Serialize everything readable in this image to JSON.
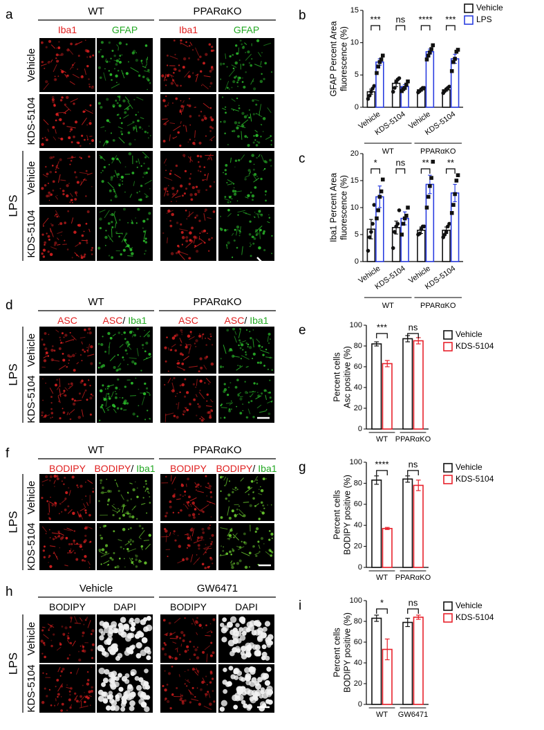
{
  "panels": [
    {
      "label": "a",
      "headers": [
        "WT",
        "PPARαKO"
      ],
      "columns": [
        [
          {
            "text": "Iba1",
            "color": "#e01e1e"
          }
        ],
        [
          {
            "text": "GFAP",
            "color": "#22a822"
          }
        ],
        [
          {
            "text": "Iba1",
            "color": "#e01e1e"
          }
        ],
        [
          {
            "text": "GFAP",
            "color": "#22a822"
          }
        ]
      ],
      "stains": [
        "#d82020",
        "#2cc02c",
        "#d82020",
        "#2cc02c"
      ],
      "rows": [
        "Vehicle",
        "KDS-5104",
        "Vehicle",
        "KDS-5104"
      ],
      "group": "LPS"
    },
    {
      "label": "d",
      "headers": [
        "WT",
        "PPARαKO"
      ],
      "columns": [
        [
          {
            "text": "ASC",
            "color": "#e01e1e"
          }
        ],
        [
          {
            "text": "ASC",
            "color": "#e01e1e"
          },
          {
            "text": "/",
            "color": "#000000"
          },
          {
            "text": "Iba1",
            "color": "#22a822"
          }
        ],
        [
          {
            "text": "ASC",
            "color": "#e01e1e"
          }
        ],
        [
          {
            "text": "ASC",
            "color": "#e01e1e"
          },
          {
            "text": "/",
            "color": "#000000"
          },
          {
            "text": "Iba1",
            "color": "#22a822"
          }
        ]
      ],
      "stains": [
        "#d82020",
        "#2cc02c",
        "#d82020",
        "#2cc02c"
      ],
      "rows": [
        "Vehicle",
        "KDS-5104"
      ],
      "group": "LPS"
    },
    {
      "label": "f",
      "headers": [
        "WT",
        "PPARαKO"
      ],
      "columns": [
        [
          {
            "text": "BODIPY",
            "color": "#e01e1e"
          }
        ],
        [
          {
            "text": "BODIPY",
            "color": "#e01e1e"
          },
          {
            "text": "/",
            "color": "#000000"
          },
          {
            "text": "Iba1",
            "color": "#22a822"
          }
        ],
        [
          {
            "text": "BODIPY",
            "color": "#e01e1e"
          }
        ],
        [
          {
            "text": "BODIPY",
            "color": "#e01e1e"
          },
          {
            "text": "/",
            "color": "#000000"
          },
          {
            "text": "Iba1",
            "color": "#22a822"
          }
        ]
      ],
      "stains": [
        "#d82020",
        "#6cd030",
        "#d82020",
        "#6cd030"
      ],
      "rows": [
        "Vehicle",
        "KDS-5104"
      ],
      "group": "LPS"
    },
    {
      "label": "h",
      "headers": [
        "Vehicle",
        "GW6471"
      ],
      "columns": [
        [
          {
            "text": "BODIPY",
            "color": "#000000"
          }
        ],
        [
          {
            "text": "DAPI",
            "color": "#000000"
          }
        ],
        [
          {
            "text": "BODIPY",
            "color": "#000000"
          }
        ],
        [
          {
            "text": "DAPI",
            "color": "#000000"
          }
        ]
      ],
      "stains": [
        "#c81c1c",
        "#ffffff",
        "#c81c1c",
        "#ffffff"
      ],
      "rows": [
        "Vehicle",
        "KDS-5104"
      ],
      "group": "LPS"
    }
  ],
  "chart_data": [
    {
      "type": "bar",
      "label": "b",
      "ylabel": [
        "GFAP Percent Area",
        "fluorescence (%)"
      ],
      "categories": [
        "Vehicle",
        "KDS-5104",
        "Vehicle",
        "KDS-5104"
      ],
      "groups": [
        "WT",
        "PPARαKO"
      ],
      "ylim": [
        0,
        15
      ],
      "yticks": [
        0,
        5,
        10,
        15
      ],
      "legend": "outside right",
      "series": [
        {
          "name": "Vehicle",
          "color": "#111111",
          "values": [
            2.4,
            3.7,
            2.7,
            2.7
          ],
          "errors": [
            0.4,
            0.5,
            0.2,
            0.2
          ],
          "points": [
            [
              1.3,
              1.8,
              2.4,
              2.9,
              3.3
            ],
            [
              2.4,
              3.0,
              3.9,
              4.3,
              4.5
            ],
            [
              2.3,
              2.5,
              2.8,
              3.0,
              3.0
            ],
            [
              2.2,
              2.5,
              2.8,
              3.0,
              3.2
            ]
          ]
        },
        {
          "name": "LPS",
          "color": "#2a3de0",
          "values": [
            7.0,
            3.2,
            8.6,
            7.5
          ],
          "errors": [
            0.5,
            0.3,
            0.4,
            0.7
          ],
          "points": [
            [
              5.3,
              6.3,
              7.0,
              7.4,
              8.0
            ],
            [
              2.5,
              2.8,
              3.0,
              3.5,
              4.0
            ],
            [
              7.4,
              8.0,
              8.5,
              9.0,
              9.6
            ],
            [
              5.6,
              7.0,
              7.5,
              8.6,
              8.9
            ]
          ]
        }
      ],
      "significance": [
        "***",
        "ns",
        "****",
        "***"
      ]
    },
    {
      "type": "bar",
      "label": "c",
      "ylabel": [
        "Iba1 Percent Area",
        "fluorescence (%)"
      ],
      "categories": [
        "Vehicle",
        "KDS-5104",
        "Vehicle",
        "KDS-5104"
      ],
      "groups": [
        "WT",
        "PPARαKO"
      ],
      "ylim": [
        0,
        20
      ],
      "yticks": [
        0,
        5,
        10,
        15,
        20
      ],
      "series": [
        {
          "name": "Vehicle",
          "color": "#111111",
          "values": [
            6.0,
            6.3,
            5.8,
            5.8
          ],
          "errors": [
            1.8,
            1.2,
            0.6,
            0.6
          ],
          "points": [
            [
              2,
              4.5,
              5.5,
              7,
              10.5
            ],
            [
              2.5,
              5.5,
              6.5,
              7,
              9.5
            ],
            [
              5,
              5.2,
              6,
              6.5,
              6.5
            ],
            [
              4.5,
              5,
              5.5,
              6.5,
              7
            ]
          ]
        },
        {
          "name": "LPS",
          "color": "#2a3de0",
          "values": [
            12.0,
            8.0,
            14.3,
            12.7
          ],
          "errors": [
            2.0,
            1.2,
            1.7,
            1.6
          ],
          "points": [
            [
              8,
              9.5,
              12,
              13,
              15.2
            ],
            [
              5,
              7,
              8,
              8.5,
              10
            ],
            [
              10,
              12,
              14,
              15.5,
              18.5
            ],
            [
              9,
              10.5,
              12.5,
              15,
              16
            ]
          ]
        }
      ],
      "significance": [
        "*",
        "ns",
        "**",
        "**"
      ]
    },
    {
      "type": "bar",
      "label": "e",
      "ylabel": [
        "Percent cells",
        "Asc positive (%)"
      ],
      "categories": [
        "WT",
        "PPARαKO"
      ],
      "ylim": [
        0,
        100
      ],
      "yticks": [
        0,
        20,
        40,
        60,
        80,
        100
      ],
      "legend": "outside right",
      "series": [
        {
          "name": "Vehicle",
          "color": "#111111",
          "values": [
            82,
            87
          ],
          "errors": [
            2,
            3
          ]
        },
        {
          "name": "KDS-5104",
          "color": "#e8202a",
          "values": [
            63,
            85
          ],
          "errors": [
            3,
            3
          ]
        }
      ],
      "significance": [
        "***",
        "ns"
      ]
    },
    {
      "type": "bar",
      "label": "g",
      "ylabel": [
        "Percent cells",
        "BODIPY positive (%)"
      ],
      "categories": [
        "WT",
        "PPARαKO"
      ],
      "ylim": [
        0,
        100
      ],
      "yticks": [
        0,
        20,
        40,
        60,
        80,
        100
      ],
      "legend": "outside right",
      "series": [
        {
          "name": "Vehicle",
          "color": "#111111",
          "values": [
            83,
            84
          ],
          "errors": [
            4,
            3
          ]
        },
        {
          "name": "KDS-5104",
          "color": "#e8202a",
          "values": [
            37,
            78
          ],
          "errors": [
            1,
            5
          ]
        }
      ],
      "significance": [
        "****",
        "ns"
      ]
    },
    {
      "type": "bar",
      "label": "i",
      "ylabel": [
        "Percent cells",
        "BODIPY positive (%)"
      ],
      "categories": [
        "WT",
        "GW6471"
      ],
      "ylim": [
        0,
        100
      ],
      "yticks": [
        0,
        20,
        40,
        60,
        80,
        100
      ],
      "legend": "outside right",
      "series": [
        {
          "name": "Vehicle",
          "color": "#111111",
          "values": [
            83,
            79
          ],
          "errors": [
            3,
            4
          ]
        },
        {
          "name": "KDS-5104",
          "color": "#e8202a",
          "values": [
            53,
            84
          ],
          "errors": [
            10,
            2
          ]
        }
      ],
      "significance": [
        "*",
        "ns"
      ]
    }
  ]
}
